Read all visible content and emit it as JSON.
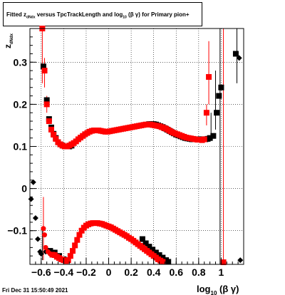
{
  "title": {
    "prefix": "Fitted",
    "var": "z",
    "var_sub": "dNdx",
    "mid": "versus TpcTrackLength and log",
    "log_sub": "10",
    "suffix": "(β γ) for Primary pion+"
  },
  "footer": {
    "timestamp": "Fri Dec 31 15:50:49 2021"
  },
  "chart_data": {
    "type": "scatter",
    "title": "Fitted z_dNdx versus TpcTrackLength and log10(β γ) for Primary pion+",
    "xlabel": "log10(β γ)",
    "ylabel": "z_dNdx",
    "xlim": [
      -0.7,
      1.2
    ],
    "ylim": [
      -0.18,
      0.38
    ],
    "grid": true,
    "x_ticks": [
      -0.6,
      -0.4,
      -0.2,
      0,
      0.2,
      0.4,
      0.6,
      0.8,
      1
    ],
    "x_tick_labels": [
      "−0.6",
      "−0.4",
      "−0.2",
      "0",
      "0.2",
      "0.4",
      "0.6",
      "0.8",
      "1"
    ],
    "y_ticks": [
      -0.1,
      0,
      0.1,
      0.2,
      0.3
    ],
    "y_tick_labels": [
      "−0.1",
      "0",
      "0.1",
      "0.2",
      "0.3"
    ],
    "series": [
      {
        "color": "#000000",
        "marker": "square",
        "errors": [
          {
            "x": 0.99,
            "lo": -0.18,
            "hi": 0.38
          },
          {
            "x": 1.14,
            "lo": 0.25,
            "hi": 0.38
          },
          {
            "x": 0.95,
            "lo": 0.14,
            "hi": 0.28
          },
          {
            "x": 0.91,
            "lo": 0.12,
            "hi": 0.18
          },
          {
            "x": -0.59,
            "lo": -0.17,
            "hi": -0.09
          }
        ],
        "points": [
          [
            -0.58,
            0.29
          ],
          [
            -0.55,
            0.21
          ],
          [
            -0.53,
            0.165
          ],
          [
            -0.51,
            0.145
          ],
          [
            -0.49,
            0.13
          ],
          [
            -0.47,
            0.12
          ],
          [
            -0.45,
            0.11
          ],
          [
            -0.43,
            0.105
          ],
          [
            -0.41,
            0.102
          ],
          [
            -0.39,
            0.1
          ],
          [
            -0.37,
            0.1
          ],
          [
            -0.35,
            0.1
          ],
          [
            -0.33,
            0.102
          ],
          [
            0.36,
            0.153
          ],
          [
            0.38,
            0.153
          ],
          [
            0.4,
            0.153
          ],
          [
            0.42,
            0.152
          ],
          [
            0.44,
            0.15
          ],
          [
            0.46,
            0.148
          ],
          [
            0.48,
            0.146
          ],
          [
            0.5,
            0.143
          ],
          [
            0.52,
            0.14
          ],
          [
            0.54,
            0.137
          ],
          [
            0.56,
            0.134
          ],
          [
            0.58,
            0.131
          ],
          [
            0.6,
            0.128
          ],
          [
            0.62,
            0.126
          ],
          [
            0.64,
            0.124
          ],
          [
            0.66,
            0.122
          ],
          [
            0.68,
            0.12
          ],
          [
            0.7,
            0.119
          ],
          [
            0.72,
            0.118
          ],
          [
            0.74,
            0.117
          ],
          [
            0.76,
            0.117
          ],
          [
            0.78,
            0.117
          ],
          [
            0.8,
            0.117
          ],
          [
            0.82,
            0.117
          ],
          [
            0.84,
            0.117
          ],
          [
            0.86,
            0.117
          ],
          [
            0.88,
            0.118
          ],
          [
            0.9,
            0.12
          ],
          [
            0.93,
            0.125
          ],
          [
            0.96,
            0.18
          ],
          [
            0.98,
            0.22
          ],
          [
            1.0,
            0.24
          ],
          [
            1.13,
            0.32
          ],
          [
            1.16,
            0.31
          ],
          [
            -0.6,
            -0.155
          ],
          [
            -0.56,
            -0.15
          ],
          [
            -0.52,
            -0.148
          ],
          [
            -0.48,
            -0.152
          ],
          [
            -0.44,
            -0.16
          ],
          [
            -0.4,
            -0.168
          ],
          [
            -0.37,
            -0.17
          ],
          [
            0.3,
            -0.12
          ],
          [
            0.33,
            -0.13
          ],
          [
            0.36,
            -0.138
          ],
          [
            0.39,
            -0.145
          ],
          [
            0.42,
            -0.152
          ],
          [
            0.45,
            -0.158
          ],
          [
            0.48,
            -0.164
          ],
          [
            0.51,
            -0.17
          ],
          [
            0.53,
            -0.174
          ],
          [
            -0.69,
            -0.025
          ],
          [
            -0.67,
            0.015
          ],
          [
            -0.65,
            -0.07
          ],
          [
            -0.63,
            -0.12
          ],
          [
            -0.61,
            -0.15
          ],
          [
            1.17,
            -0.17
          ]
        ]
      },
      {
        "color": "#ff0000",
        "marker": "square",
        "errors": [
          {
            "x": -0.59,
            "lo": 0.25,
            "hi": 0.38
          },
          {
            "x": -0.57,
            "lo": 0.24,
            "hi": 0.31
          },
          {
            "x": -0.55,
            "lo": 0.18,
            "hi": 0.22
          },
          {
            "x": 0.89,
            "lo": 0.2,
            "hi": 0.35
          },
          {
            "x": 0.87,
            "lo": 0.15,
            "hi": 0.2
          },
          {
            "x": 1.02,
            "lo": -0.18,
            "hi": 0.38
          },
          {
            "x": -0.58,
            "lo": -0.17,
            "hi": -0.02
          }
        ],
        "points": [
          [
            -0.59,
            0.38
          ],
          [
            -0.57,
            0.28
          ],
          [
            -0.55,
            0.2
          ],
          [
            -0.53,
            0.16
          ],
          [
            -0.51,
            0.14
          ],
          [
            -0.49,
            0.128
          ],
          [
            -0.47,
            0.118
          ],
          [
            -0.45,
            0.11
          ],
          [
            -0.43,
            0.105
          ],
          [
            -0.41,
            0.102
          ],
          [
            -0.39,
            0.1
          ],
          [
            -0.37,
            0.1
          ],
          [
            -0.35,
            0.102
          ],
          [
            -0.33,
            0.105
          ],
          [
            -0.31,
            0.108
          ],
          [
            -0.29,
            0.112
          ],
          [
            -0.27,
            0.117
          ],
          [
            -0.25,
            0.121
          ],
          [
            -0.23,
            0.125
          ],
          [
            -0.21,
            0.129
          ],
          [
            -0.19,
            0.132
          ],
          [
            -0.17,
            0.135
          ],
          [
            -0.15,
            0.137
          ],
          [
            -0.13,
            0.138
          ],
          [
            -0.11,
            0.138
          ],
          [
            -0.09,
            0.138
          ],
          [
            -0.07,
            0.137
          ],
          [
            -0.05,
            0.136
          ],
          [
            -0.03,
            0.135
          ],
          [
            -0.01,
            0.135
          ],
          [
            0.01,
            0.136
          ],
          [
            0.03,
            0.137
          ],
          [
            0.05,
            0.138
          ],
          [
            0.07,
            0.139
          ],
          [
            0.09,
            0.14
          ],
          [
            0.11,
            0.141
          ],
          [
            0.13,
            0.142
          ],
          [
            0.15,
            0.143
          ],
          [
            0.17,
            0.144
          ],
          [
            0.19,
            0.145
          ],
          [
            0.21,
            0.146
          ],
          [
            0.23,
            0.147
          ],
          [
            0.25,
            0.148
          ],
          [
            0.27,
            0.149
          ],
          [
            0.29,
            0.15
          ],
          [
            0.31,
            0.151
          ],
          [
            0.33,
            0.152
          ],
          [
            0.35,
            0.152
          ],
          [
            0.37,
            0.152
          ],
          [
            0.39,
            0.151
          ],
          [
            0.41,
            0.15
          ],
          [
            0.43,
            0.149
          ],
          [
            0.45,
            0.148
          ],
          [
            0.47,
            0.146
          ],
          [
            0.49,
            0.144
          ],
          [
            0.51,
            0.142
          ],
          [
            0.53,
            0.139
          ],
          [
            0.55,
            0.136
          ],
          [
            0.57,
            0.133
          ],
          [
            0.59,
            0.131
          ],
          [
            0.61,
            0.129
          ],
          [
            0.63,
            0.127
          ],
          [
            0.65,
            0.125
          ],
          [
            0.67,
            0.123
          ],
          [
            0.69,
            0.121
          ],
          [
            0.71,
            0.12
          ],
          [
            0.73,
            0.119
          ],
          [
            0.75,
            0.118
          ],
          [
            0.77,
            0.117
          ],
          [
            0.79,
            0.116
          ],
          [
            0.81,
            0.116
          ],
          [
            0.83,
            0.115
          ],
          [
            0.85,
            0.117
          ],
          [
            0.87,
            0.18
          ],
          [
            0.89,
            0.265
          ],
          [
            -0.58,
            -0.095
          ],
          [
            -0.57,
            -0.11
          ],
          [
            -0.56,
            -0.14
          ],
          [
            -0.54,
            -0.15
          ],
          [
            -0.52,
            -0.155
          ],
          [
            -0.5,
            -0.157
          ],
          [
            -0.48,
            -0.158
          ],
          [
            -0.46,
            -0.162
          ],
          [
            -0.44,
            -0.165
          ],
          [
            -0.42,
            -0.168
          ],
          [
            -0.4,
            -0.17
          ],
          [
            -0.38,
            -0.172
          ],
          [
            -0.36,
            -0.17
          ],
          [
            -0.34,
            -0.16
          ],
          [
            -0.32,
            -0.148
          ],
          [
            -0.3,
            -0.135
          ],
          [
            -0.28,
            -0.122
          ],
          [
            -0.26,
            -0.11
          ],
          [
            -0.24,
            -0.1
          ],
          [
            -0.22,
            -0.093
          ],
          [
            -0.2,
            -0.088
          ],
          [
            -0.18,
            -0.085
          ],
          [
            -0.16,
            -0.083
          ],
          [
            -0.14,
            -0.082
          ],
          [
            -0.12,
            -0.082
          ],
          [
            -0.1,
            -0.082
          ],
          [
            -0.08,
            -0.083
          ],
          [
            -0.06,
            -0.084
          ],
          [
            -0.04,
            -0.086
          ],
          [
            -0.02,
            -0.088
          ],
          [
            0.0,
            -0.09
          ],
          [
            0.02,
            -0.092
          ],
          [
            0.04,
            -0.095
          ],
          [
            0.06,
            -0.098
          ],
          [
            0.08,
            -0.101
          ],
          [
            0.1,
            -0.104
          ],
          [
            0.12,
            -0.107
          ],
          [
            0.14,
            -0.11
          ],
          [
            0.16,
            -0.113
          ],
          [
            0.18,
            -0.117
          ],
          [
            0.2,
            -0.12
          ],
          [
            0.22,
            -0.124
          ],
          [
            0.24,
            -0.128
          ],
          [
            0.26,
            -0.132
          ],
          [
            0.28,
            -0.136
          ],
          [
            0.3,
            -0.14
          ],
          [
            0.32,
            -0.144
          ],
          [
            0.34,
            -0.148
          ],
          [
            0.36,
            -0.152
          ],
          [
            0.38,
            -0.156
          ],
          [
            0.4,
            -0.16
          ],
          [
            0.42,
            -0.164
          ],
          [
            0.44,
            -0.168
          ],
          [
            0.46,
            -0.171
          ],
          [
            0.48,
            -0.174
          ],
          [
            1.02,
            -0.175
          ]
        ]
      }
    ]
  }
}
